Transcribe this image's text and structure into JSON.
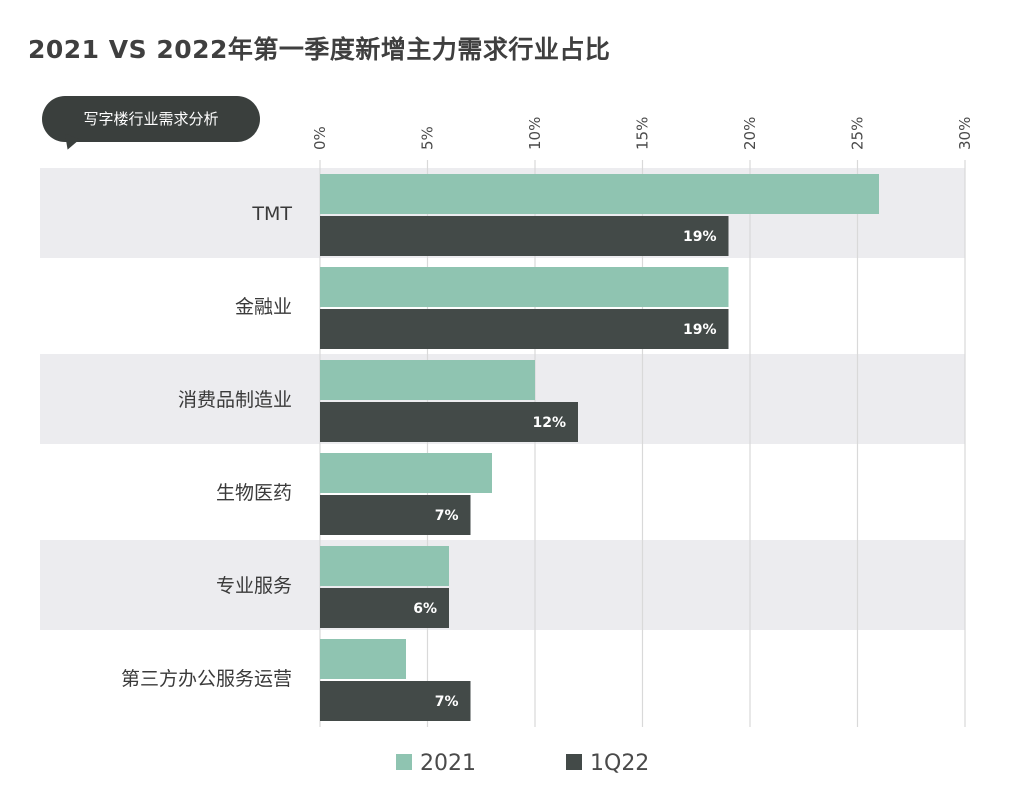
{
  "title": "2021 VS 2022年第一季度新增主力需求行业占比",
  "subtitle": "写字楼行业需求分析",
  "colors": {
    "series_2021": "#8fc4b1",
    "series_1q22": "#434a48",
    "band": "#ececef",
    "grid": "#d9d9d9"
  },
  "chart_data": {
    "type": "bar",
    "orientation": "horizontal",
    "categories": [
      "TMT",
      "金融业",
      "消费品制造业",
      "生物医药",
      "专业服务",
      "第三方办公服务运营"
    ],
    "series": [
      {
        "name": "2021",
        "values": [
          26,
          19,
          10,
          8,
          6,
          4
        ]
      },
      {
        "name": "1Q22",
        "values": [
          19,
          19,
          12,
          7,
          6,
          7
        ],
        "labels": [
          "19%",
          "19%",
          "12%",
          "7%",
          "6%",
          "7%"
        ]
      }
    ],
    "xlim": [
      0,
      30
    ],
    "xticks": [
      "0%",
      "5%",
      "10%",
      "15%",
      "20%",
      "25%",
      "30%"
    ],
    "grid": true,
    "legend": "bottom"
  }
}
